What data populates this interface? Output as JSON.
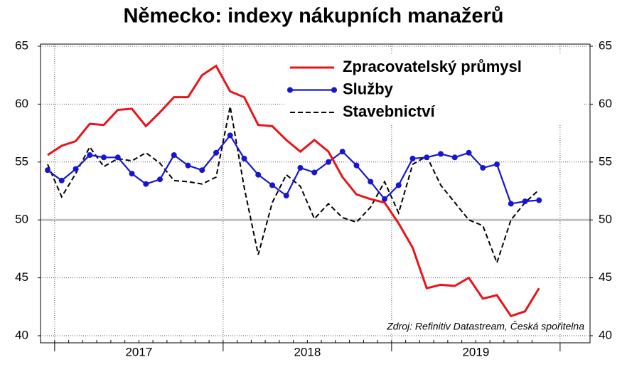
{
  "chart_data": {
    "type": "line",
    "title": "Německo: indexy nákupních manažerů",
    "source": "Zdroj: Refinitiv Datastream, Česká spořitelna",
    "categories": [
      null,
      null,
      null,
      null,
      null,
      null,
      null,
      null,
      null,
      null,
      null,
      null,
      null,
      null,
      null,
      null,
      null,
      null,
      null,
      null,
      null,
      null,
      null,
      null,
      null,
      null,
      null,
      null,
      null,
      null,
      null,
      null,
      null,
      null,
      null,
      null
    ],
    "year_labels": [
      "2017",
      "2018",
      "2019"
    ],
    "series": [
      {
        "name": "Zpracovatelský průmysl",
        "color": "#e8141b",
        "style": "solid",
        "markers": false,
        "values": [
          55.6,
          56.4,
          56.8,
          58.3,
          58.2,
          59.5,
          59.6,
          58.1,
          59.3,
          60.6,
          60.6,
          62.5,
          63.3,
          61.1,
          60.6,
          58.2,
          58.1,
          56.9,
          55.9,
          56.9,
          55.9,
          53.7,
          52.2,
          51.8,
          51.5,
          49.7,
          47.6,
          44.1,
          44.4,
          44.3,
          45.0,
          43.2,
          43.5,
          41.7,
          42.1,
          44.1
        ]
      },
      {
        "name": "Služby",
        "color": "#1616d0",
        "style": "solid",
        "markers": true,
        "values": [
          54.3,
          53.4,
          54.4,
          55.6,
          55.4,
          55.4,
          54.0,
          53.1,
          53.5,
          55.6,
          54.7,
          54.3,
          55.8,
          57.3,
          55.3,
          53.9,
          53.0,
          52.1,
          54.5,
          54.1,
          55.0,
          55.9,
          54.7,
          53.3,
          51.8,
          53.0,
          55.3,
          55.4,
          55.7,
          55.4,
          55.8,
          54.5,
          54.8,
          51.4,
          51.6,
          51.7
        ]
      },
      {
        "name": "Stavebnictví",
        "color": "#000000",
        "style": "dashed",
        "markers": false,
        "values": [
          54.8,
          52.0,
          54.0,
          56.3,
          54.6,
          55.3,
          55.1,
          55.8,
          54.9,
          53.4,
          53.3,
          53.1,
          53.7,
          59.8,
          52.8,
          47.0,
          51.5,
          53.9,
          52.9,
          50.1,
          51.4,
          50.2,
          49.8,
          51.1,
          53.3,
          50.6,
          54.8,
          55.5,
          53.0,
          51.5,
          50.0,
          49.5,
          46.3,
          50.0,
          51.5,
          52.6
        ]
      }
    ],
    "ylim": [
      40,
      65
    ],
    "yticks": [
      40,
      45,
      50,
      55,
      60,
      65
    ],
    "highlight_y": 50,
    "grid": true,
    "legend": "top-right"
  }
}
